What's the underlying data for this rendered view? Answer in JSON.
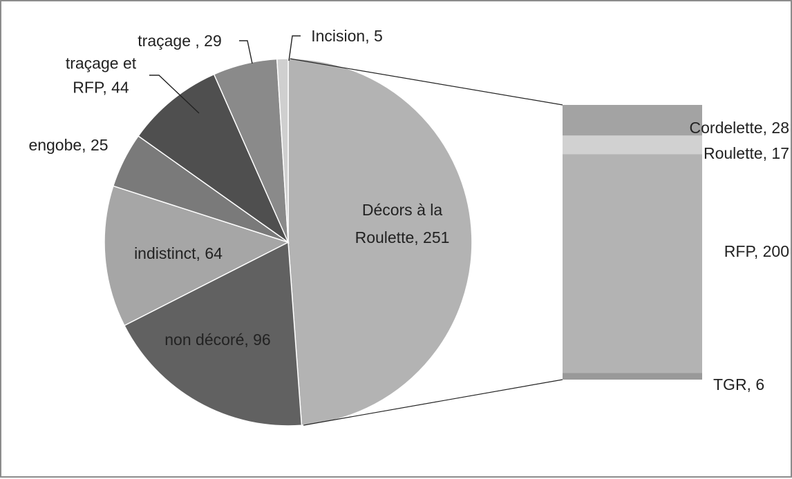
{
  "chart_data": {
    "type": "bar-of-pie",
    "title": "",
    "pie": {
      "start_angle_deg": 0,
      "direction": "clockwise",
      "slices": [
        {
          "name": "Décors à la Roulette",
          "value": 251,
          "label": "Décors à la Roulette, 251",
          "label_lines": [
            "Décors à la",
            "Roulette, 251"
          ],
          "color": "#b3b3b3"
        },
        {
          "name": "non décoré",
          "value": 96,
          "label": "non décoré, 96",
          "label_lines": [
            "non décoré, 96"
          ],
          "color": "#616161"
        },
        {
          "name": "indistinct",
          "value": 64,
          "label": "indistinct, 64",
          "label_lines": [
            "indistinct, 64"
          ],
          "color": "#a6a6a6"
        },
        {
          "name": "engobe",
          "value": 25,
          "label": "engobe, 25",
          "label_lines": [
            "engobe, 25"
          ],
          "color": "#7a7a7a"
        },
        {
          "name": "traçage et RFP",
          "value": 44,
          "label": "traçage et RFP, 44",
          "label_lines": [
            "traçage et",
            "RFP, 44"
          ],
          "color": "#4f4f4f"
        },
        {
          "name": "traçage",
          "value": 29,
          "label": "traçage , 29",
          "label_lines": [
            "traçage , 29"
          ],
          "color": "#8a8a8a"
        },
        {
          "name": "Incision",
          "value": 5,
          "label": "Incision, 5",
          "label_lines": [
            "Incision, 5"
          ],
          "color": "#cfcfcf"
        }
      ]
    },
    "bar": {
      "breakdown_of": "Décors à la Roulette",
      "segments": [
        {
          "name": "Cordelette",
          "value": 28,
          "label": "Cordelette, 28",
          "color": "#a3a3a3"
        },
        {
          "name": "Roulette",
          "value": 17,
          "label": "Roulette, 17",
          "color": "#d1d1d1"
        },
        {
          "name": "RFP",
          "value": 200,
          "label": "RFP, 200",
          "color": "#b3b3b3"
        },
        {
          "name": "TGR",
          "value": 6,
          "label": "TGR, 6",
          "color": "#999999"
        }
      ]
    },
    "legend": "none",
    "grid": false
  }
}
